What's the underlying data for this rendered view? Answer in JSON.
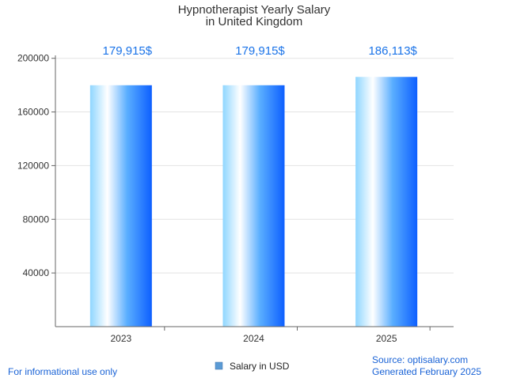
{
  "chart_data": {
    "type": "bar",
    "title_lines": [
      "Hypnotherapist Yearly Salary",
      "in United Kingdom"
    ],
    "categories": [
      "2023",
      "2024",
      "2025"
    ],
    "series": [
      {
        "name": "Salary in USD",
        "values": [
          179915,
          179915,
          186113
        ]
      }
    ],
    "data_labels": [
      "179,915$",
      "179,915$",
      "186,113$"
    ],
    "yticks": [
      "200000",
      "160000",
      "120000",
      "80000",
      "40000"
    ],
    "ytick_values": [
      200000,
      160000,
      120000,
      80000,
      40000
    ],
    "ylim": [
      0,
      200000
    ],
    "grid": true,
    "legend_position": "bottom-center"
  },
  "footer": {
    "left_note": "For informational use only",
    "source": "Source: optisalary.com",
    "generated": "Generated February 2025"
  },
  "colors": {
    "bar_light": "#d6f2ff",
    "bar_mid": "#7fcfff",
    "bar_dark": "#0d63ff",
    "label": "#1a73e8",
    "grid": "#e3e3e3",
    "axis": "#666666"
  }
}
